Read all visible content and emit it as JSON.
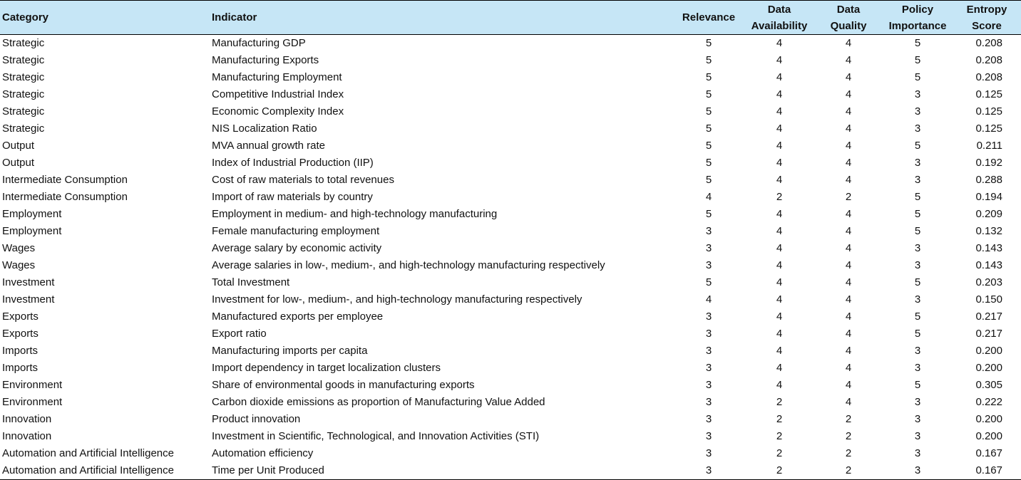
{
  "table": {
    "headers": {
      "category": "Category",
      "indicator": "Indicator",
      "relevance": "Relevance",
      "availability": [
        "Data",
        "Availability"
      ],
      "quality": [
        "Data",
        "Quality"
      ],
      "policy": [
        "Policy",
        "Importance"
      ],
      "entropy": [
        "Entropy",
        "Score"
      ]
    },
    "rows": [
      {
        "category": "Strategic",
        "indicator": "Manufacturing GDP",
        "relevance": "5",
        "availability": "4",
        "quality": "4",
        "policy": "5",
        "entropy": "0.208"
      },
      {
        "category": "Strategic",
        "indicator": "Manufacturing Exports",
        "relevance": "5",
        "availability": "4",
        "quality": "4",
        "policy": "5",
        "entropy": "0.208"
      },
      {
        "category": "Strategic",
        "indicator": "Manufacturing Employment",
        "relevance": "5",
        "availability": "4",
        "quality": "4",
        "policy": "5",
        "entropy": "0.208"
      },
      {
        "category": "Strategic",
        "indicator": "Competitive Industrial Index",
        "relevance": "5",
        "availability": "4",
        "quality": "4",
        "policy": "3",
        "entropy": "0.125"
      },
      {
        "category": "Strategic",
        "indicator": "Economic Complexity Index",
        "relevance": "5",
        "availability": "4",
        "quality": "4",
        "policy": "3",
        "entropy": "0.125"
      },
      {
        "category": "Strategic",
        "indicator": "NIS Localization Ratio",
        "relevance": "5",
        "availability": "4",
        "quality": "4",
        "policy": "3",
        "entropy": "0.125"
      },
      {
        "category": "Output",
        "indicator": "MVA annual growth rate",
        "relevance": "5",
        "availability": "4",
        "quality": "4",
        "policy": "5",
        "entropy": "0.211"
      },
      {
        "category": "Output",
        "indicator": "Index of Industrial Production (IIP)",
        "relevance": "5",
        "availability": "4",
        "quality": "4",
        "policy": "3",
        "entropy": "0.192"
      },
      {
        "category": "Intermediate Consumption",
        "indicator": "Cost of raw materials to total revenues",
        "relevance": "5",
        "availability": "4",
        "quality": "4",
        "policy": "3",
        "entropy": "0.288"
      },
      {
        "category": "Intermediate Consumption",
        "indicator": "Import of raw materials by country",
        "relevance": "4",
        "availability": "2",
        "quality": "2",
        "policy": "5",
        "entropy": "0.194"
      },
      {
        "category": "Employment",
        "indicator": "Employment in medium- and high-technology manufacturing",
        "relevance": "5",
        "availability": "4",
        "quality": "4",
        "policy": "5",
        "entropy": "0.209"
      },
      {
        "category": "Employment",
        "indicator": "Female manufacturing employment",
        "relevance": "3",
        "availability": "4",
        "quality": "4",
        "policy": "5",
        "entropy": "0.132"
      },
      {
        "category": "Wages",
        "indicator": "Average salary by economic activity",
        "relevance": "3",
        "availability": "4",
        "quality": "4",
        "policy": "3",
        "entropy": "0.143"
      },
      {
        "category": "Wages",
        "indicator": "Average salaries in low-, medium-, and high-technology manufacturing respectively",
        "relevance": "3",
        "availability": "4",
        "quality": "4",
        "policy": "3",
        "entropy": "0.143"
      },
      {
        "category": "Investment",
        "indicator": "Total Investment",
        "relevance": "5",
        "availability": "4",
        "quality": "4",
        "policy": "5",
        "entropy": "0.203"
      },
      {
        "category": "Investment",
        "indicator": "Investment for low-, medium-, and high-technology manufacturing respectively",
        "relevance": "4",
        "availability": "4",
        "quality": "4",
        "policy": "3",
        "entropy": "0.150"
      },
      {
        "category": "Exports",
        "indicator": "Manufactured exports per employee",
        "relevance": "3",
        "availability": "4",
        "quality": "4",
        "policy": "5",
        "entropy": "0.217"
      },
      {
        "category": "Exports",
        "indicator": "Export ratio",
        "relevance": "3",
        "availability": "4",
        "quality": "4",
        "policy": "5",
        "entropy": "0.217"
      },
      {
        "category": "Imports",
        "indicator": "Manufacturing imports per capita",
        "relevance": "3",
        "availability": "4",
        "quality": "4",
        "policy": "3",
        "entropy": "0.200"
      },
      {
        "category": "Imports",
        "indicator": "Import dependency in target localization clusters",
        "relevance": "3",
        "availability": "4",
        "quality": "4",
        "policy": "3",
        "entropy": "0.200"
      },
      {
        "category": "Environment",
        "indicator": "Share of environmental goods in manufacturing exports",
        "relevance": "3",
        "availability": "4",
        "quality": "4",
        "policy": "5",
        "entropy": "0.305"
      },
      {
        "category": "Environment",
        "indicator": "Carbon dioxide emissions as proportion of Manufacturing Value Added",
        "relevance": "3",
        "availability": "2",
        "quality": "4",
        "policy": "3",
        "entropy": "0.222"
      },
      {
        "category": "Innovation",
        "indicator": "Product innovation",
        "relevance": "3",
        "availability": "2",
        "quality": "2",
        "policy": "3",
        "entropy": "0.200"
      },
      {
        "category": "Innovation",
        "indicator": "Investment in Scientific, Technological, and Innovation Activities (STI)",
        "relevance": "3",
        "availability": "2",
        "quality": "2",
        "policy": "3",
        "entropy": "0.200"
      },
      {
        "category": "Automation and Artificial Intelligence",
        "indicator": "Automation efficiency",
        "relevance": "3",
        "availability": "2",
        "quality": "2",
        "policy": "3",
        "entropy": "0.167"
      },
      {
        "category": "Automation and Artificial Intelligence",
        "indicator": "Time per Unit Produced",
        "relevance": "3",
        "availability": "2",
        "quality": "2",
        "policy": "3",
        "entropy": "0.167"
      }
    ]
  }
}
